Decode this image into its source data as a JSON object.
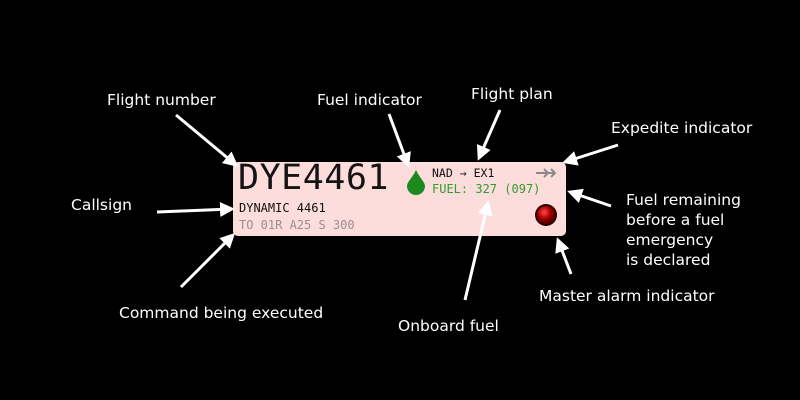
{
  "labels": {
    "flight_number": "Flight number",
    "fuel_indicator": "Fuel indicator",
    "flight_plan": "Flight plan",
    "expedite_indicator": "Expedite indicator",
    "callsign": "Callsign",
    "fuel_remaining_1": "Fuel remaining",
    "fuel_remaining_2": "before a fuel",
    "fuel_remaining_3": "emergency",
    "fuel_remaining_4": "is declared",
    "master_alarm": "Master alarm indicator",
    "command": "Command being executed",
    "onboard_fuel": "Onboard fuel"
  },
  "strip": {
    "flight_number": "DYE4461",
    "callsign": "DYNAMIC 4461",
    "command": "TO 01R A25 S 300",
    "plan_from": "NAD",
    "plan_arrow": "→",
    "plan_to": "EX1",
    "fuel_label": "FUEL:",
    "fuel_onboard": "327",
    "fuel_remaining": "(097)"
  },
  "colors": {
    "background": "#000000",
    "strip": "#fddcdc",
    "fuel_text": "#2e9e2e",
    "fuel_drop": "#1c8a1c",
    "alarm": "#8b0000",
    "command_text": "#9a8f8f"
  },
  "icons": [
    "fuel-drop-icon",
    "expedite-arrows-icon",
    "master-alarm-icon"
  ]
}
